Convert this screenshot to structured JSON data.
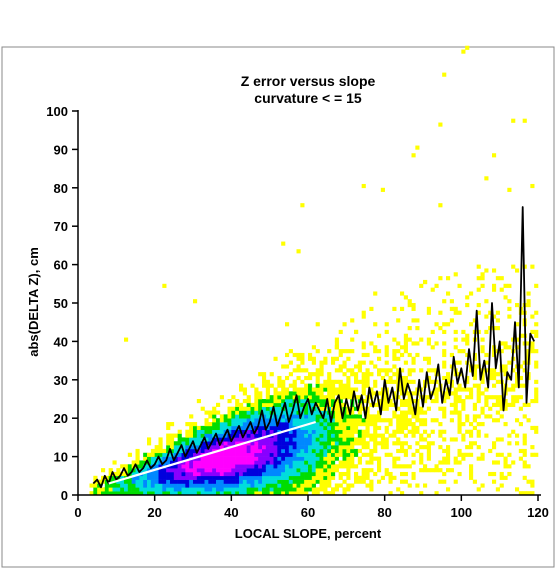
{
  "chart_data": {
    "type": "heatmap",
    "title": "Z error versus slope",
    "subtitle": "curvature < = 15",
    "xlabel": "LOCAL SLOPE, percent",
    "ylabel": "abs(DELTA Z), cm",
    "xlim": [
      0,
      120
    ],
    "ylim": [
      0,
      100
    ],
    "x_ticks": [
      0,
      20,
      40,
      60,
      80,
      100,
      120
    ],
    "y_ticks": [
      0,
      10,
      20,
      30,
      40,
      50,
      60,
      70,
      80,
      90,
      100
    ],
    "grid": false,
    "density_colors": [
      "#ffff00",
      "#00dd00",
      "#00dddd",
      "#0088ff",
      "#0000dd",
      "#8800ff",
      "#ff00ff"
    ],
    "contour_color": "#b87333",
    "series": [
      {
        "type": "line",
        "color": "#000000",
        "x": [
          4,
          5,
          6,
          7,
          8,
          9,
          10,
          11,
          12,
          13,
          14,
          15,
          16,
          17,
          18,
          19,
          20,
          21,
          22,
          23,
          24,
          25,
          26,
          27,
          28,
          29,
          30,
          31,
          32,
          33,
          34,
          35,
          36,
          37,
          38,
          39,
          40,
          41,
          42,
          43,
          44,
          45,
          46,
          47,
          48,
          49,
          50,
          51,
          52,
          53,
          54,
          55,
          56,
          57,
          58,
          59,
          60,
          61,
          62,
          63,
          64,
          65,
          66,
          67,
          68,
          69,
          70,
          71,
          72,
          73,
          74,
          75,
          76,
          77,
          78,
          79,
          80,
          81,
          82,
          83,
          84,
          85,
          86,
          87,
          88,
          89,
          90,
          91,
          92,
          93,
          94,
          95,
          96,
          97,
          98,
          99,
          100,
          101,
          102,
          103,
          104,
          105,
          106,
          107,
          108,
          109,
          110,
          111,
          112,
          113,
          114,
          115,
          116,
          117,
          118,
          119
        ],
        "y": [
          3,
          4,
          2,
          5,
          3,
          6,
          4,
          5,
          7,
          5,
          6,
          8,
          6,
          7,
          9,
          7,
          8,
          10,
          8,
          9,
          12,
          9,
          11,
          13,
          10,
          12,
          14,
          11,
          13,
          15,
          12,
          14,
          16,
          13,
          15,
          17,
          14,
          16,
          18,
          15,
          17,
          19,
          16,
          18,
          22,
          17,
          19,
          23,
          18,
          21,
          24,
          19,
          22,
          26,
          20,
          23,
          25,
          21,
          24,
          22,
          20,
          25,
          19,
          24,
          26,
          20,
          25,
          21,
          27,
          22,
          26,
          20,
          28,
          23,
          27,
          21,
          30,
          24,
          28,
          22,
          33,
          25,
          29,
          26,
          21,
          30,
          23,
          32,
          25,
          28,
          34,
          24,
          30,
          26,
          36,
          29,
          33,
          28,
          38,
          31,
          48,
          30,
          35,
          28,
          50,
          33,
          40,
          22,
          32,
          30,
          45,
          28,
          75,
          24,
          42,
          40
        ]
      },
      {
        "type": "line",
        "color": "#ffffff",
        "x": [
          8,
          62
        ],
        "y": [
          3,
          19
        ]
      }
    ]
  }
}
